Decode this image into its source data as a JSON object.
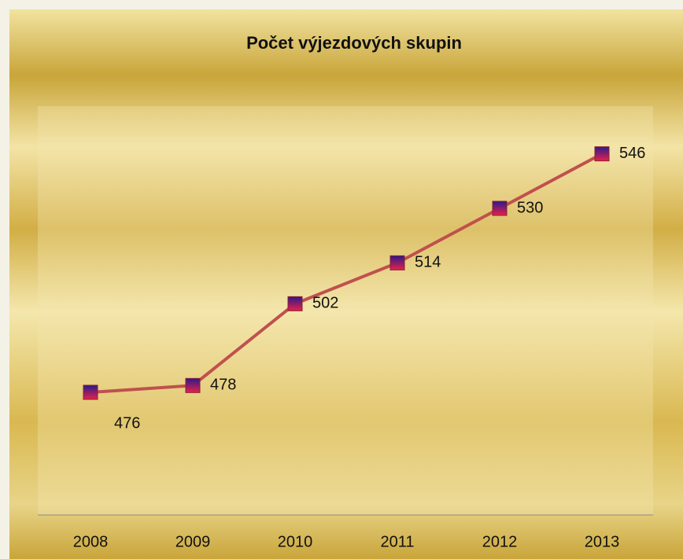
{
  "chart_data": {
    "type": "line",
    "title": "Počet výjezdových skupin",
    "categories": [
      "2008",
      "2009",
      "2010",
      "2011",
      "2012",
      "2013"
    ],
    "series": [
      {
        "name": "Počet výjezdových skupin",
        "color": "#c0504d",
        "values": [
          476,
          478,
          502,
          514,
          530,
          546
        ]
      }
    ],
    "ylim": [
      440,
      560
    ]
  }
}
